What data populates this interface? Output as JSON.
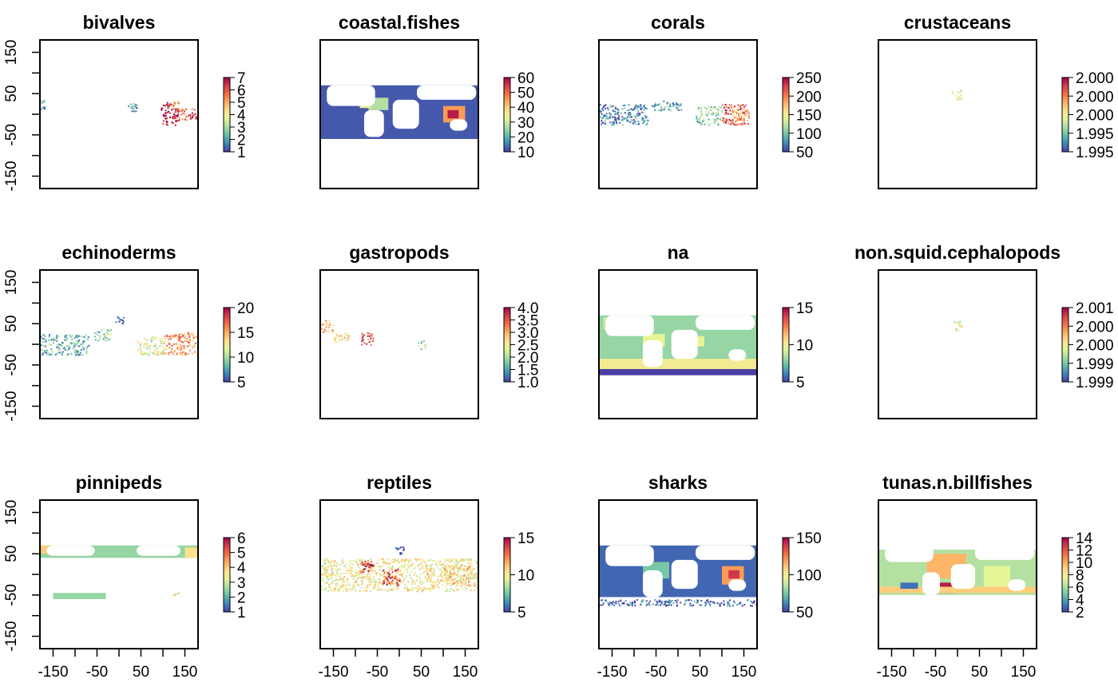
{
  "chart_data": {
    "type": "heatmap",
    "layout": {
      "rows": 3,
      "cols": 4
    },
    "x_range": [
      -180,
      180
    ],
    "y_range": [
      -180,
      180
    ],
    "x_ticks": [
      -150,
      -100,
      -50,
      0,
      50,
      100,
      150
    ],
    "x_tick_labels": [
      "-150",
      "-50",
      "50",
      "150"
    ],
    "y_ticks": [
      -150,
      -100,
      -50,
      0,
      50,
      100,
      150
    ],
    "y_tick_labels": [
      "-150",
      "-50",
      "50",
      "150"
    ],
    "palette": [
      "#4b3fa3",
      "#3a87bd",
      "#66c1a5",
      "#abdda4",
      "#e6f598",
      "#fee08b",
      "#fdae61",
      "#f46d43",
      "#d53e4f",
      "#9e0142"
    ],
    "land_color": "#ffffff",
    "panels": [
      {
        "title": "bivalves",
        "colorbar": {
          "ticks": [
            "1",
            "2",
            "3",
            "4",
            "5",
            "6",
            "7"
          ],
          "range": [
            1,
            7
          ]
        },
        "patches": [
          {
            "x": -180,
            "y": 10,
            "w": 10,
            "h": 30,
            "v": 0.15,
            "sparse": true
          },
          {
            "x": 20,
            "y": 0,
            "w": 20,
            "h": 30,
            "v": 0.2,
            "sparse": true
          },
          {
            "x": 95,
            "y": -25,
            "w": 40,
            "h": 55,
            "v": 0.95,
            "sparse": true
          },
          {
            "x": 130,
            "y": -15,
            "w": 45,
            "h": 30,
            "v": 0.85,
            "sparse": true
          },
          {
            "x": 115,
            "y": 15,
            "w": 20,
            "h": 20,
            "v": 0.55,
            "sparse": true
          }
        ]
      },
      {
        "title": "coastal.fishes",
        "colorbar": {
          "ticks": [
            "10",
            "20",
            "30",
            "40",
            "50",
            "60"
          ],
          "range": [
            5,
            65
          ]
        },
        "patches": [
          {
            "x": -180,
            "y": -60,
            "w": 360,
            "h": 130,
            "v": 0.04
          },
          {
            "x": -70,
            "y": 10,
            "w": 45,
            "h": 30,
            "v": 0.35
          },
          {
            "x": 100,
            "y": -20,
            "w": 50,
            "h": 40,
            "v": 0.7
          },
          {
            "x": 110,
            "y": -10,
            "w": 25,
            "h": 20,
            "v": 0.95
          },
          {
            "x": -90,
            "y": 15,
            "w": 25,
            "h": 15,
            "v": 0.5
          }
        ],
        "land": [
          {
            "x": -165,
            "y": 20,
            "w": 110,
            "h": 50
          },
          {
            "x": -80,
            "y": -55,
            "w": 45,
            "h": 65
          },
          {
            "x": -15,
            "y": -35,
            "w": 60,
            "h": 70
          },
          {
            "x": 40,
            "y": 35,
            "w": 135,
            "h": 35
          },
          {
            "x": 115,
            "y": -40,
            "w": 40,
            "h": 28
          }
        ]
      },
      {
        "title": "corals",
        "colorbar": {
          "ticks": [
            "50",
            "100",
            "150",
            "200",
            "250"
          ],
          "range": [
            20,
            290
          ]
        },
        "patches": [
          {
            "x": -180,
            "y": -25,
            "w": 110,
            "h": 50,
            "v": 0.12,
            "sparse": true
          },
          {
            "x": -60,
            "y": 10,
            "w": 70,
            "h": 25,
            "v": 0.2,
            "sparse": true
          },
          {
            "x": 40,
            "y": -25,
            "w": 60,
            "h": 45,
            "v": 0.3,
            "sparse": true
          },
          {
            "x": 100,
            "y": -25,
            "w": 60,
            "h": 50,
            "v": 0.85,
            "sparse": true
          },
          {
            "x": 120,
            "y": -15,
            "w": 40,
            "h": 30,
            "v": 0.6,
            "sparse": true
          }
        ]
      },
      {
        "title": "crustaceans",
        "colorbar": {
          "ticks": [
            "1.995",
            "1.995",
            "2.000",
            "2.000",
            "2.000"
          ],
          "range": [
            1.995,
            2.0
          ]
        },
        "patches": [
          {
            "x": -15,
            "y": 35,
            "w": 25,
            "h": 25,
            "v": 0.45,
            "sparse": true
          }
        ]
      },
      {
        "title": "echinoderms",
        "colorbar": {
          "ticks": [
            "5",
            "10",
            "15",
            "20"
          ],
          "range": [
            1,
            23
          ]
        },
        "patches": [
          {
            "x": -180,
            "y": -25,
            "w": 110,
            "h": 50,
            "v": 0.22,
            "sparse": true
          },
          {
            "x": -60,
            "y": 10,
            "w": 40,
            "h": 30,
            "v": 0.3,
            "sparse": true
          },
          {
            "x": -10,
            "y": 50,
            "w": 20,
            "h": 20,
            "v": 0.05,
            "sparse": true
          },
          {
            "x": 40,
            "y": -25,
            "w": 60,
            "h": 45,
            "v": 0.45,
            "sparse": true
          },
          {
            "x": 100,
            "y": -25,
            "w": 75,
            "h": 55,
            "v": 0.7,
            "sparse": true
          }
        ]
      },
      {
        "title": "gastropods",
        "colorbar": {
          "ticks": [
            "1.0",
            "1.5",
            "2.0",
            "2.5",
            "3.0",
            "3.5",
            "4.0"
          ],
          "range": [
            1,
            4
          ]
        },
        "patches": [
          {
            "x": -180,
            "y": 30,
            "w": 30,
            "h": 30,
            "v": 0.65,
            "sparse": true
          },
          {
            "x": -150,
            "y": 5,
            "w": 35,
            "h": 25,
            "v": 0.55,
            "sparse": true
          },
          {
            "x": -90,
            "y": 0,
            "w": 30,
            "h": 30,
            "v": 0.8,
            "sparse": true
          },
          {
            "x": 40,
            "y": -10,
            "w": 20,
            "h": 20,
            "v": 0.35,
            "sparse": true
          }
        ]
      },
      {
        "title": "na",
        "colorbar": {
          "ticks": [
            "5",
            "10",
            "15"
          ],
          "range": [
            1,
            19
          ]
        },
        "patches": [
          {
            "x": -180,
            "y": -60,
            "w": 360,
            "h": 130,
            "v": 0.3
          },
          {
            "x": -180,
            "y": -60,
            "w": 360,
            "h": 25,
            "v": 0.5
          },
          {
            "x": -80,
            "y": -5,
            "w": 50,
            "h": 30,
            "v": 0.45
          },
          {
            "x": 20,
            "y": -5,
            "w": 40,
            "h": 25,
            "v": 0.45
          },
          {
            "x": -170,
            "y": 35,
            "w": 50,
            "h": 30,
            "v": 0.4
          },
          {
            "x": -180,
            "y": -75,
            "w": 360,
            "h": 15,
            "v": 0.0
          }
        ],
        "land": [
          {
            "x": -165,
            "y": 20,
            "w": 110,
            "h": 50
          },
          {
            "x": -80,
            "y": -55,
            "w": 45,
            "h": 65
          },
          {
            "x": -15,
            "y": -35,
            "w": 60,
            "h": 70
          },
          {
            "x": 40,
            "y": 35,
            "w": 135,
            "h": 35
          },
          {
            "x": 115,
            "y": -40,
            "w": 40,
            "h": 28
          }
        ]
      },
      {
        "title": "non.squid.cephalopods",
        "colorbar": {
          "ticks": [
            "1.999",
            "1.999",
            "2.000",
            "2.000",
            "2.001"
          ],
          "range": [
            1.999,
            2.001
          ]
        },
        "patches": [
          {
            "x": -10,
            "y": 35,
            "w": 20,
            "h": 25,
            "v": 0.45,
            "sparse": true
          }
        ]
      },
      {
        "title": "pinnipeds",
        "colorbar": {
          "ticks": [
            "1",
            "2",
            "3",
            "4",
            "5",
            "6"
          ],
          "range": [
            1,
            6
          ]
        },
        "patches": [
          {
            "x": -180,
            "y": 40,
            "w": 360,
            "h": 30,
            "v": 0.3
          },
          {
            "x": -150,
            "y": -60,
            "w": 120,
            "h": 15,
            "v": 0.3
          },
          {
            "x": -180,
            "y": 50,
            "w": 25,
            "h": 20,
            "v": 0.6
          },
          {
            "x": 150,
            "y": 40,
            "w": 30,
            "h": 25,
            "v": 0.55
          },
          {
            "x": 120,
            "y": -50,
            "w": 20,
            "h": 10,
            "v": 0.5,
            "sparse": true
          }
        ],
        "land": [
          {
            "x": -165,
            "y": 45,
            "w": 110,
            "h": 25
          },
          {
            "x": 40,
            "y": 45,
            "w": 100,
            "h": 25
          }
        ]
      },
      {
        "title": "reptiles",
        "colorbar": {
          "ticks": [
            "5",
            "10",
            "15"
          ],
          "range": [
            1,
            19
          ]
        },
        "patches": [
          {
            "x": -180,
            "y": -40,
            "w": 360,
            "h": 80,
            "v": 0.5,
            "sparse": true
          },
          {
            "x": -90,
            "y": 5,
            "w": 30,
            "h": 30,
            "v": 0.9,
            "sparse": true
          },
          {
            "x": -40,
            "y": -25,
            "w": 40,
            "h": 40,
            "v": 0.85,
            "sparse": true
          },
          {
            "x": 100,
            "y": -25,
            "w": 60,
            "h": 50,
            "v": 0.6,
            "sparse": true
          },
          {
            "x": -10,
            "y": 50,
            "w": 25,
            "h": 20,
            "v": 0.1,
            "sparse": true
          }
        ]
      },
      {
        "title": "sharks",
        "colorbar": {
          "ticks": [
            "50",
            "100",
            "150"
          ],
          "range": [
            5,
            175
          ]
        },
        "patches": [
          {
            "x": -180,
            "y": -55,
            "w": 360,
            "h": 125,
            "v": 0.06
          },
          {
            "x": -80,
            "y": -10,
            "w": 60,
            "h": 40,
            "v": 0.25
          },
          {
            "x": 100,
            "y": -25,
            "w": 50,
            "h": 45,
            "v": 0.7
          },
          {
            "x": 115,
            "y": -10,
            "w": 25,
            "h": 20,
            "v": 0.9
          },
          {
            "x": -180,
            "y": -75,
            "w": 360,
            "h": 15,
            "v": 0.05,
            "sparse": true
          }
        ],
        "land": [
          {
            "x": -165,
            "y": 20,
            "w": 110,
            "h": 50
          },
          {
            "x": -80,
            "y": -55,
            "w": 45,
            "h": 65
          },
          {
            "x": -15,
            "y": -35,
            "w": 60,
            "h": 70
          },
          {
            "x": 40,
            "y": 35,
            "w": 135,
            "h": 35
          },
          {
            "x": 115,
            "y": -40,
            "w": 40,
            "h": 28
          }
        ]
      },
      {
        "title": "tunas.n.billfishes",
        "colorbar": {
          "ticks": [
            "2",
            "4",
            "6",
            "8",
            "10",
            "12",
            "14"
          ],
          "range": [
            1,
            15
          ]
        },
        "patches": [
          {
            "x": -180,
            "y": -50,
            "w": 360,
            "h": 110,
            "v": 0.35
          },
          {
            "x": -70,
            "y": -10,
            "w": 90,
            "h": 60,
            "v": 0.65
          },
          {
            "x": -40,
            "y": -45,
            "w": 40,
            "h": 25,
            "v": 0.95
          },
          {
            "x": -180,
            "y": -45,
            "w": 360,
            "h": 15,
            "v": 0.6
          },
          {
            "x": 60,
            "y": -30,
            "w": 60,
            "h": 50,
            "v": 0.45
          },
          {
            "x": -130,
            "y": -35,
            "w": 40,
            "h": 15,
            "v": 0.08
          }
        ],
        "land": [
          {
            "x": -165,
            "y": 30,
            "w": 110,
            "h": 40
          },
          {
            "x": -80,
            "y": -50,
            "w": 40,
            "h": 55
          },
          {
            "x": -15,
            "y": -35,
            "w": 55,
            "h": 60
          },
          {
            "x": 40,
            "y": 35,
            "w": 135,
            "h": 35
          },
          {
            "x": 115,
            "y": -40,
            "w": 40,
            "h": 28
          }
        ]
      }
    ]
  }
}
